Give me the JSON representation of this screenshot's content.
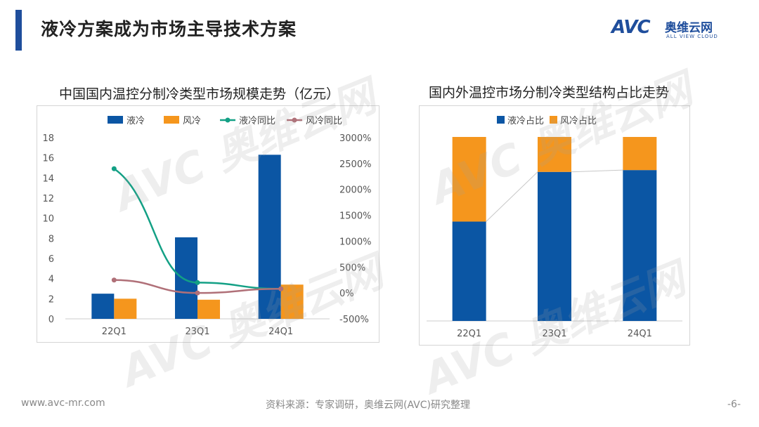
{
  "page": {
    "title": "液冷方案成为市场主导技术方案",
    "logo_text": "AVC",
    "logo_cn": "奥维云网",
    "logo_en": "ALL VIEW CLOUD",
    "watermark": "AVC 奥维云网",
    "footer_left": "www.avc-mr.com",
    "footer_source": "资料来源：专家调研，奥维云网(AVC)研究整理",
    "page_number": "-6-"
  },
  "colors": {
    "blue": "#0b56a4",
    "orange": "#f5961d",
    "teal": "#13a085",
    "mauve": "#b07078",
    "accent": "#1f4e9c"
  },
  "chart_data": [
    {
      "type": "bar",
      "title": "中国国内温控分制冷类型市场规模走势（亿元）",
      "categories": [
        "22Q1",
        "23Q1",
        "24Q1"
      ],
      "series": [
        {
          "name": "液冷",
          "kind": "bar",
          "axis": "left",
          "values": [
            2.5,
            8.1,
            16.3
          ]
        },
        {
          "name": "风冷",
          "kind": "bar",
          "axis": "left",
          "values": [
            2.0,
            1.9,
            3.4
          ]
        },
        {
          "name": "液冷同比",
          "kind": "line",
          "axis": "right",
          "values": [
            2400,
            200,
            80
          ]
        },
        {
          "name": "风冷同比",
          "kind": "line",
          "axis": "right",
          "values": [
            250,
            0,
            80
          ]
        }
      ],
      "ylim": [
        0,
        18
      ],
      "yticks": [
        0,
        2,
        4,
        6,
        8,
        10,
        12,
        14,
        16,
        18
      ],
      "y2lim": [
        -500,
        3000
      ],
      "y2ticks": [
        "-500%",
        "0%",
        "500%",
        "1000%",
        "1500%",
        "2000%",
        "2500%",
        "3000%"
      ],
      "legend": "top"
    },
    {
      "type": "bar",
      "stacked": true,
      "title": "国内外温控市场分制冷类型结构占比走势",
      "categories": [
        "22Q1",
        "23Q1",
        "24Q1"
      ],
      "series": [
        {
          "name": "液冷占比",
          "values": [
            0.54,
            0.81,
            0.82
          ]
        },
        {
          "name": "风冷占比",
          "values": [
            0.46,
            0.19,
            0.18
          ]
        }
      ],
      "ylim": [
        0,
        1
      ],
      "legend": "top"
    }
  ]
}
